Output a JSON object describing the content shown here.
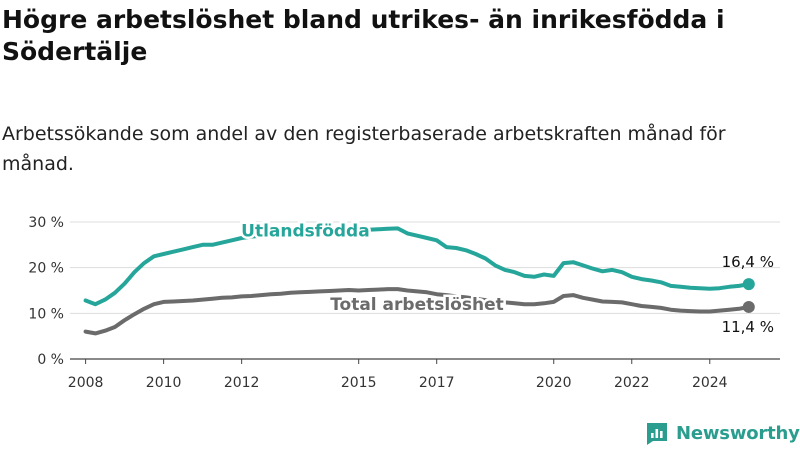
{
  "header": {
    "title": "Högre arbetslöshet bland utrikes- än inrikesfödda i Södertälje",
    "subtitle": "Arbetssökande som andel av den registerbaserade arbetskraften månad för månad."
  },
  "brand": {
    "logo_text": "Newsworthy",
    "color": "#2a9d8f"
  },
  "chart_data": {
    "type": "line",
    "title": "Högre arbetslöshet bland utrikes- än inrikesfödda i Södertälje",
    "subtitle": "Arbetssökande som andel av den registerbaserade arbetskraften månad för månad.",
    "xlabel": "",
    "ylabel": "",
    "ylim": [
      0,
      30
    ],
    "yticks": [
      0,
      10,
      20,
      30
    ],
    "ytick_labels": [
      "0 %",
      "10 %",
      "20 %",
      "30 %"
    ],
    "xtick_labels": [
      "2008",
      "2010",
      "2012",
      "2015",
      "2017",
      "2020",
      "2022",
      "2024"
    ],
    "grid": true,
    "legend": "inline labels",
    "series": [
      {
        "name": "Utlandsfödda",
        "color": "#26a69a",
        "end_label": "16,4 %",
        "x": [
          "2008-01",
          "2008-04",
          "2008-07",
          "2008-10",
          "2009-01",
          "2009-04",
          "2009-07",
          "2009-10",
          "2010-01",
          "2010-04",
          "2010-07",
          "2010-10",
          "2011-01",
          "2011-04",
          "2011-07",
          "2011-10",
          "2012-01",
          "2012-04",
          "2012-07",
          "2012-10",
          "2013-01",
          "2013-04",
          "2013-07",
          "2013-10",
          "2014-01",
          "2014-04",
          "2014-07",
          "2014-10",
          "2015-01",
          "2015-04",
          "2015-07",
          "2015-10",
          "2016-01",
          "2016-04",
          "2016-07",
          "2016-10",
          "2017-01",
          "2017-04",
          "2017-07",
          "2017-10",
          "2018-01",
          "2018-04",
          "2018-07",
          "2018-10",
          "2019-01",
          "2019-04",
          "2019-07",
          "2019-10",
          "2020-01",
          "2020-04",
          "2020-07",
          "2020-10",
          "2021-01",
          "2021-04",
          "2021-07",
          "2021-10",
          "2022-01",
          "2022-04",
          "2022-07",
          "2022-10",
          "2023-01",
          "2023-04",
          "2023-07",
          "2023-10",
          "2024-01",
          "2024-04",
          "2024-07",
          "2024-10",
          "2025-01"
        ],
        "values": [
          12.8,
          12.0,
          13.0,
          14.5,
          16.5,
          19.0,
          21.0,
          22.5,
          23.0,
          23.5,
          24.0,
          24.5,
          25.0,
          25.0,
          25.5,
          26.0,
          26.5,
          26.8,
          27.0,
          27.2,
          27.3,
          27.5,
          27.6,
          27.8,
          28.0,
          28.2,
          28.3,
          28.5,
          28.4,
          28.3,
          28.4,
          28.5,
          28.6,
          27.5,
          27.0,
          26.5,
          26.0,
          24.5,
          24.3,
          23.8,
          23.0,
          22.0,
          20.5,
          19.5,
          19.0,
          18.2,
          18.0,
          18.5,
          18.2,
          21.0,
          21.2,
          20.5,
          19.8,
          19.2,
          19.5,
          19.0,
          18.0,
          17.5,
          17.2,
          16.8,
          16.0,
          15.8,
          15.6,
          15.5,
          15.4,
          15.5,
          15.8,
          16.0,
          16.4
        ]
      },
      {
        "name": "Total arbetslöshet",
        "color": "#6b6b6b",
        "end_label": "11,4 %",
        "x": [
          "2008-01",
          "2008-04",
          "2008-07",
          "2008-10",
          "2009-01",
          "2009-04",
          "2009-07",
          "2009-10",
          "2010-01",
          "2010-04",
          "2010-07",
          "2010-10",
          "2011-01",
          "2011-04",
          "2011-07",
          "2011-10",
          "2012-01",
          "2012-04",
          "2012-07",
          "2012-10",
          "2013-01",
          "2013-04",
          "2013-07",
          "2013-10",
          "2014-01",
          "2014-04",
          "2014-07",
          "2014-10",
          "2015-01",
          "2015-04",
          "2015-07",
          "2015-10",
          "2016-01",
          "2016-04",
          "2016-07",
          "2016-10",
          "2017-01",
          "2017-04",
          "2017-07",
          "2017-10",
          "2018-01",
          "2018-04",
          "2018-07",
          "2018-10",
          "2019-01",
          "2019-04",
          "2019-07",
          "2019-10",
          "2020-01",
          "2020-04",
          "2020-07",
          "2020-10",
          "2021-01",
          "2021-04",
          "2021-07",
          "2021-10",
          "2022-01",
          "2022-04",
          "2022-07",
          "2022-10",
          "2023-01",
          "2023-04",
          "2023-07",
          "2023-10",
          "2024-01",
          "2024-04",
          "2024-07",
          "2024-10",
          "2025-01"
        ],
        "values": [
          6.0,
          5.6,
          6.2,
          7.0,
          8.5,
          9.8,
          11.0,
          12.0,
          12.5,
          12.6,
          12.7,
          12.8,
          13.0,
          13.2,
          13.4,
          13.5,
          13.7,
          13.8,
          14.0,
          14.2,
          14.3,
          14.5,
          14.6,
          14.7,
          14.8,
          14.9,
          15.0,
          15.1,
          15.0,
          15.1,
          15.2,
          15.3,
          15.3,
          15.0,
          14.8,
          14.6,
          14.2,
          14.0,
          13.7,
          13.5,
          13.2,
          12.9,
          12.6,
          12.4,
          12.2,
          12.0,
          12.0,
          12.2,
          12.5,
          13.8,
          14.0,
          13.4,
          13.0,
          12.6,
          12.5,
          12.4,
          12.0,
          11.6,
          11.4,
          11.2,
          10.8,
          10.6,
          10.5,
          10.4,
          10.4,
          10.6,
          10.8,
          11.0,
          11.4
        ]
      }
    ]
  }
}
